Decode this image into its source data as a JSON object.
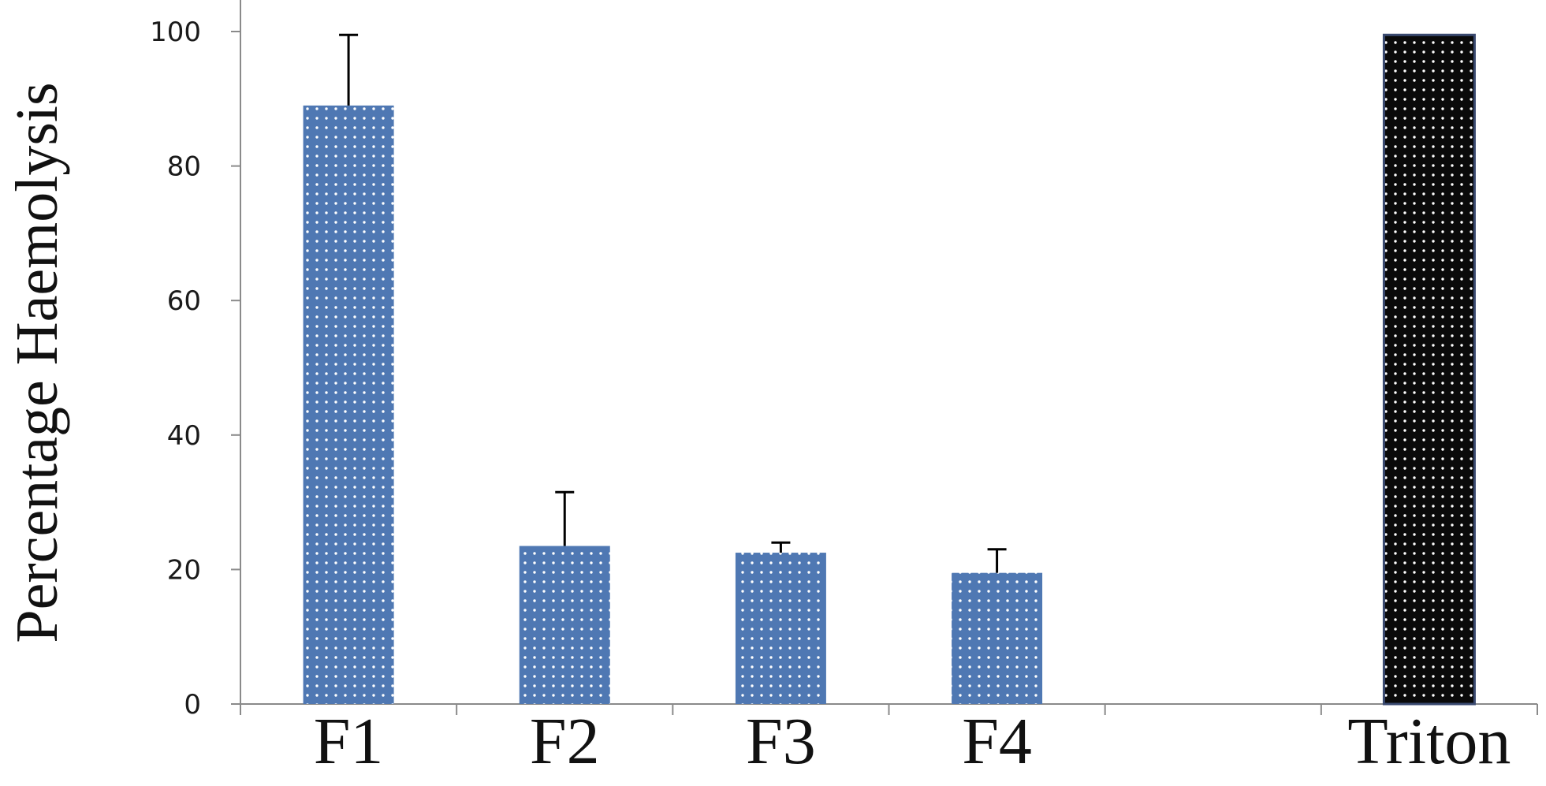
{
  "chart_data": {
    "type": "bar",
    "title": "",
    "xlabel": "",
    "ylabel": "Percentage Haemolysis",
    "ylim": [
      0,
      100
    ],
    "yticks": [
      0,
      20,
      40,
      60,
      80,
      100
    ],
    "grid": false,
    "legend": "none",
    "categories": [
      "F1",
      "F2",
      "F3",
      "F4",
      "Triton"
    ],
    "category_slots": [
      0,
      1,
      2,
      3,
      5
    ],
    "slot_count": 6,
    "values": [
      89,
      23.5,
      22.5,
      19.5,
      99.5
    ],
    "error_plus": [
      10.5,
      8,
      1.5,
      3.5,
      0
    ],
    "colors": {
      "sample_bar": "#4f78b3",
      "control_bar": "#0a0a0a",
      "axis": "#8a8a8a",
      "error_bar": "#000000"
    }
  }
}
